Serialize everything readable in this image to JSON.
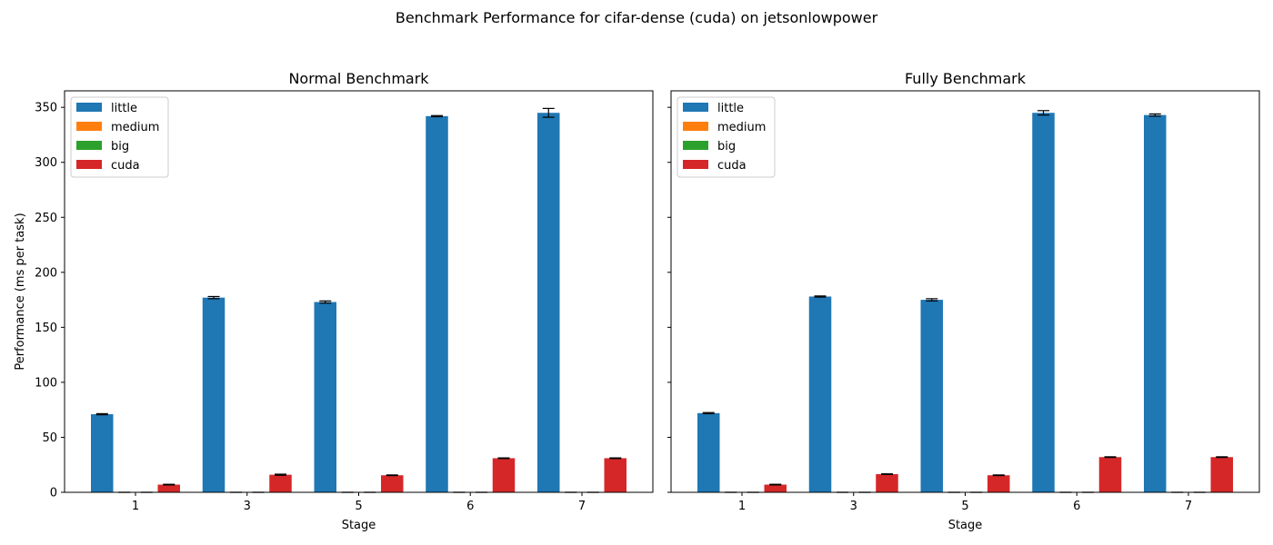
{
  "figure": {
    "title": "Benchmark Performance for cifar-dense (cuda) on jetsonlowpower"
  },
  "colors": {
    "little": "#1f77b4",
    "medium": "#ff7f0e",
    "big": "#2ca02c",
    "cuda": "#d62728"
  },
  "chart_data": [
    {
      "type": "bar",
      "title": "Normal Benchmark",
      "xlabel": "Stage",
      "ylabel": "Performance (ms per task)",
      "categories": [
        "1",
        "3",
        "5",
        "6",
        "7"
      ],
      "ylim": [
        0,
        365
      ],
      "yticks": [
        0,
        50,
        100,
        150,
        200,
        250,
        300,
        350
      ],
      "grid": false,
      "legend_position": "top-left",
      "error_bars": true,
      "series": [
        {
          "name": "little",
          "values": [
            71,
            177,
            173,
            342,
            345
          ],
          "errors": [
            0.5,
            1,
            1,
            0.5,
            4
          ]
        },
        {
          "name": "medium",
          "values": [
            0,
            0,
            0,
            0,
            0
          ],
          "errors": [
            0,
            0,
            0,
            0,
            0
          ]
        },
        {
          "name": "big",
          "values": [
            0,
            0,
            0,
            0,
            0
          ],
          "errors": [
            0,
            0,
            0,
            0,
            0
          ]
        },
        {
          "name": "cuda",
          "values": [
            7,
            16,
            15.5,
            31,
            31
          ],
          "errors": [
            0.3,
            0.5,
            0.3,
            0.3,
            0.3
          ]
        }
      ]
    },
    {
      "type": "bar",
      "title": "Fully Benchmark",
      "xlabel": "Stage",
      "ylabel": "",
      "categories": [
        "1",
        "3",
        "5",
        "6",
        "7"
      ],
      "ylim": [
        0,
        365
      ],
      "yticks": [
        0,
        50,
        100,
        150,
        200,
        250,
        300,
        350
      ],
      "grid": false,
      "legend_position": "top-left",
      "error_bars": true,
      "series": [
        {
          "name": "little",
          "values": [
            72,
            178,
            175,
            345,
            343
          ],
          "errors": [
            0.5,
            0.5,
            1,
            2,
            1
          ]
        },
        {
          "name": "medium",
          "values": [
            0,
            0,
            0,
            0,
            0
          ],
          "errors": [
            0,
            0,
            0,
            0,
            0
          ]
        },
        {
          "name": "big",
          "values": [
            0,
            0,
            0,
            0,
            0
          ],
          "errors": [
            0,
            0,
            0,
            0,
            0
          ]
        },
        {
          "name": "cuda",
          "values": [
            7,
            16.5,
            15.5,
            32,
            32
          ],
          "errors": [
            0.3,
            0.3,
            0.3,
            0.3,
            0.3
          ]
        }
      ]
    }
  ]
}
